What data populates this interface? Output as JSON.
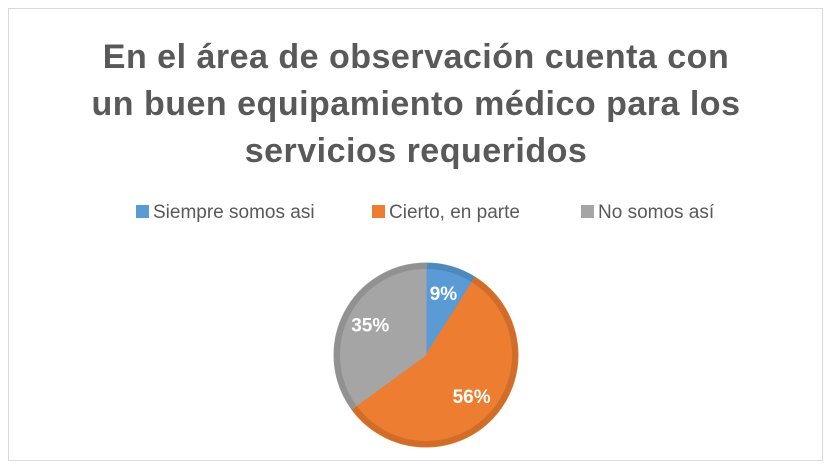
{
  "chart_data": {
    "type": "pie",
    "title": "En el área de observación cuenta con un buen equipamiento médico para los servicios requeridos",
    "categories": [
      "Siempre somos asi",
      "Cierto, en parte",
      "No somos así"
    ],
    "values": [
      9,
      56,
      35
    ],
    "value_labels": [
      "9%",
      "56%",
      "35%"
    ],
    "colors": [
      "#5b9bd5",
      "#ed7d31",
      "#a5a5a5"
    ],
    "legend": "top"
  }
}
